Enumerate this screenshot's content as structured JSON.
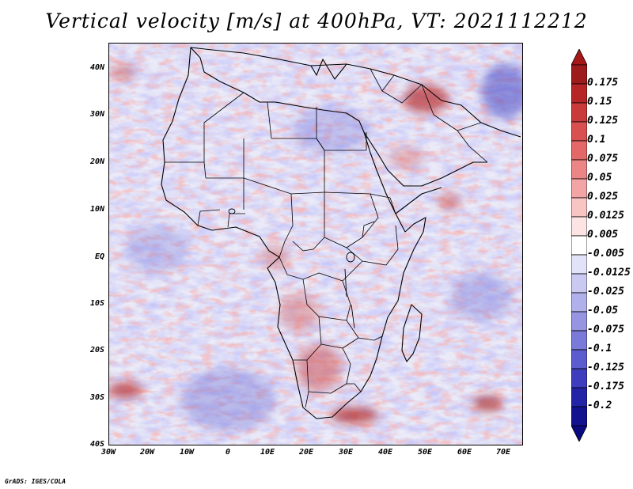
{
  "title": "Vertical velocity [m/s] at 400hPa, VT: 2021112212",
  "map": {
    "region": "Africa",
    "variable": "Vertical velocity",
    "units": "m/s",
    "level": "400hPa",
    "valid_time": "2021112212",
    "lat_labels": [
      "40N",
      "30N",
      "20N",
      "10N",
      "EQ",
      "10S",
      "20S",
      "30S",
      "40S"
    ],
    "lon_labels": [
      "30W",
      "20W",
      "10W",
      "0",
      "10E",
      "20E",
      "30E",
      "40E",
      "50E",
      "60E",
      "70E"
    ]
  },
  "colorbar": {
    "labels": [
      "0.175",
      "0.15",
      "0.125",
      "0.1",
      "0.075",
      "0.05",
      "0.025",
      "0.0125",
      "0.005",
      "-0.005",
      "-0.0125",
      "-0.025",
      "-0.05",
      "-0.075",
      "-0.1",
      "-0.125",
      "-0.175",
      "-0.2"
    ],
    "colors": [
      "#9e1b1b",
      "#b62626",
      "#c93a3a",
      "#d95050",
      "#e46868",
      "#ec8585",
      "#f3a4a4",
      "#f8c4c4",
      "#fce4e4",
      "#ffffff",
      "#e2e2f8",
      "#c9c9f1",
      "#b0b0ea",
      "#9595e2",
      "#7a7ad9",
      "#5c5cce",
      "#3d3dbe",
      "#2323a8",
      "#12128e"
    ],
    "top_arrow_color": "#a51818",
    "bottom_arrow_color": "#0a0a80"
  },
  "footer": "GrADS: IGES/COLA"
}
